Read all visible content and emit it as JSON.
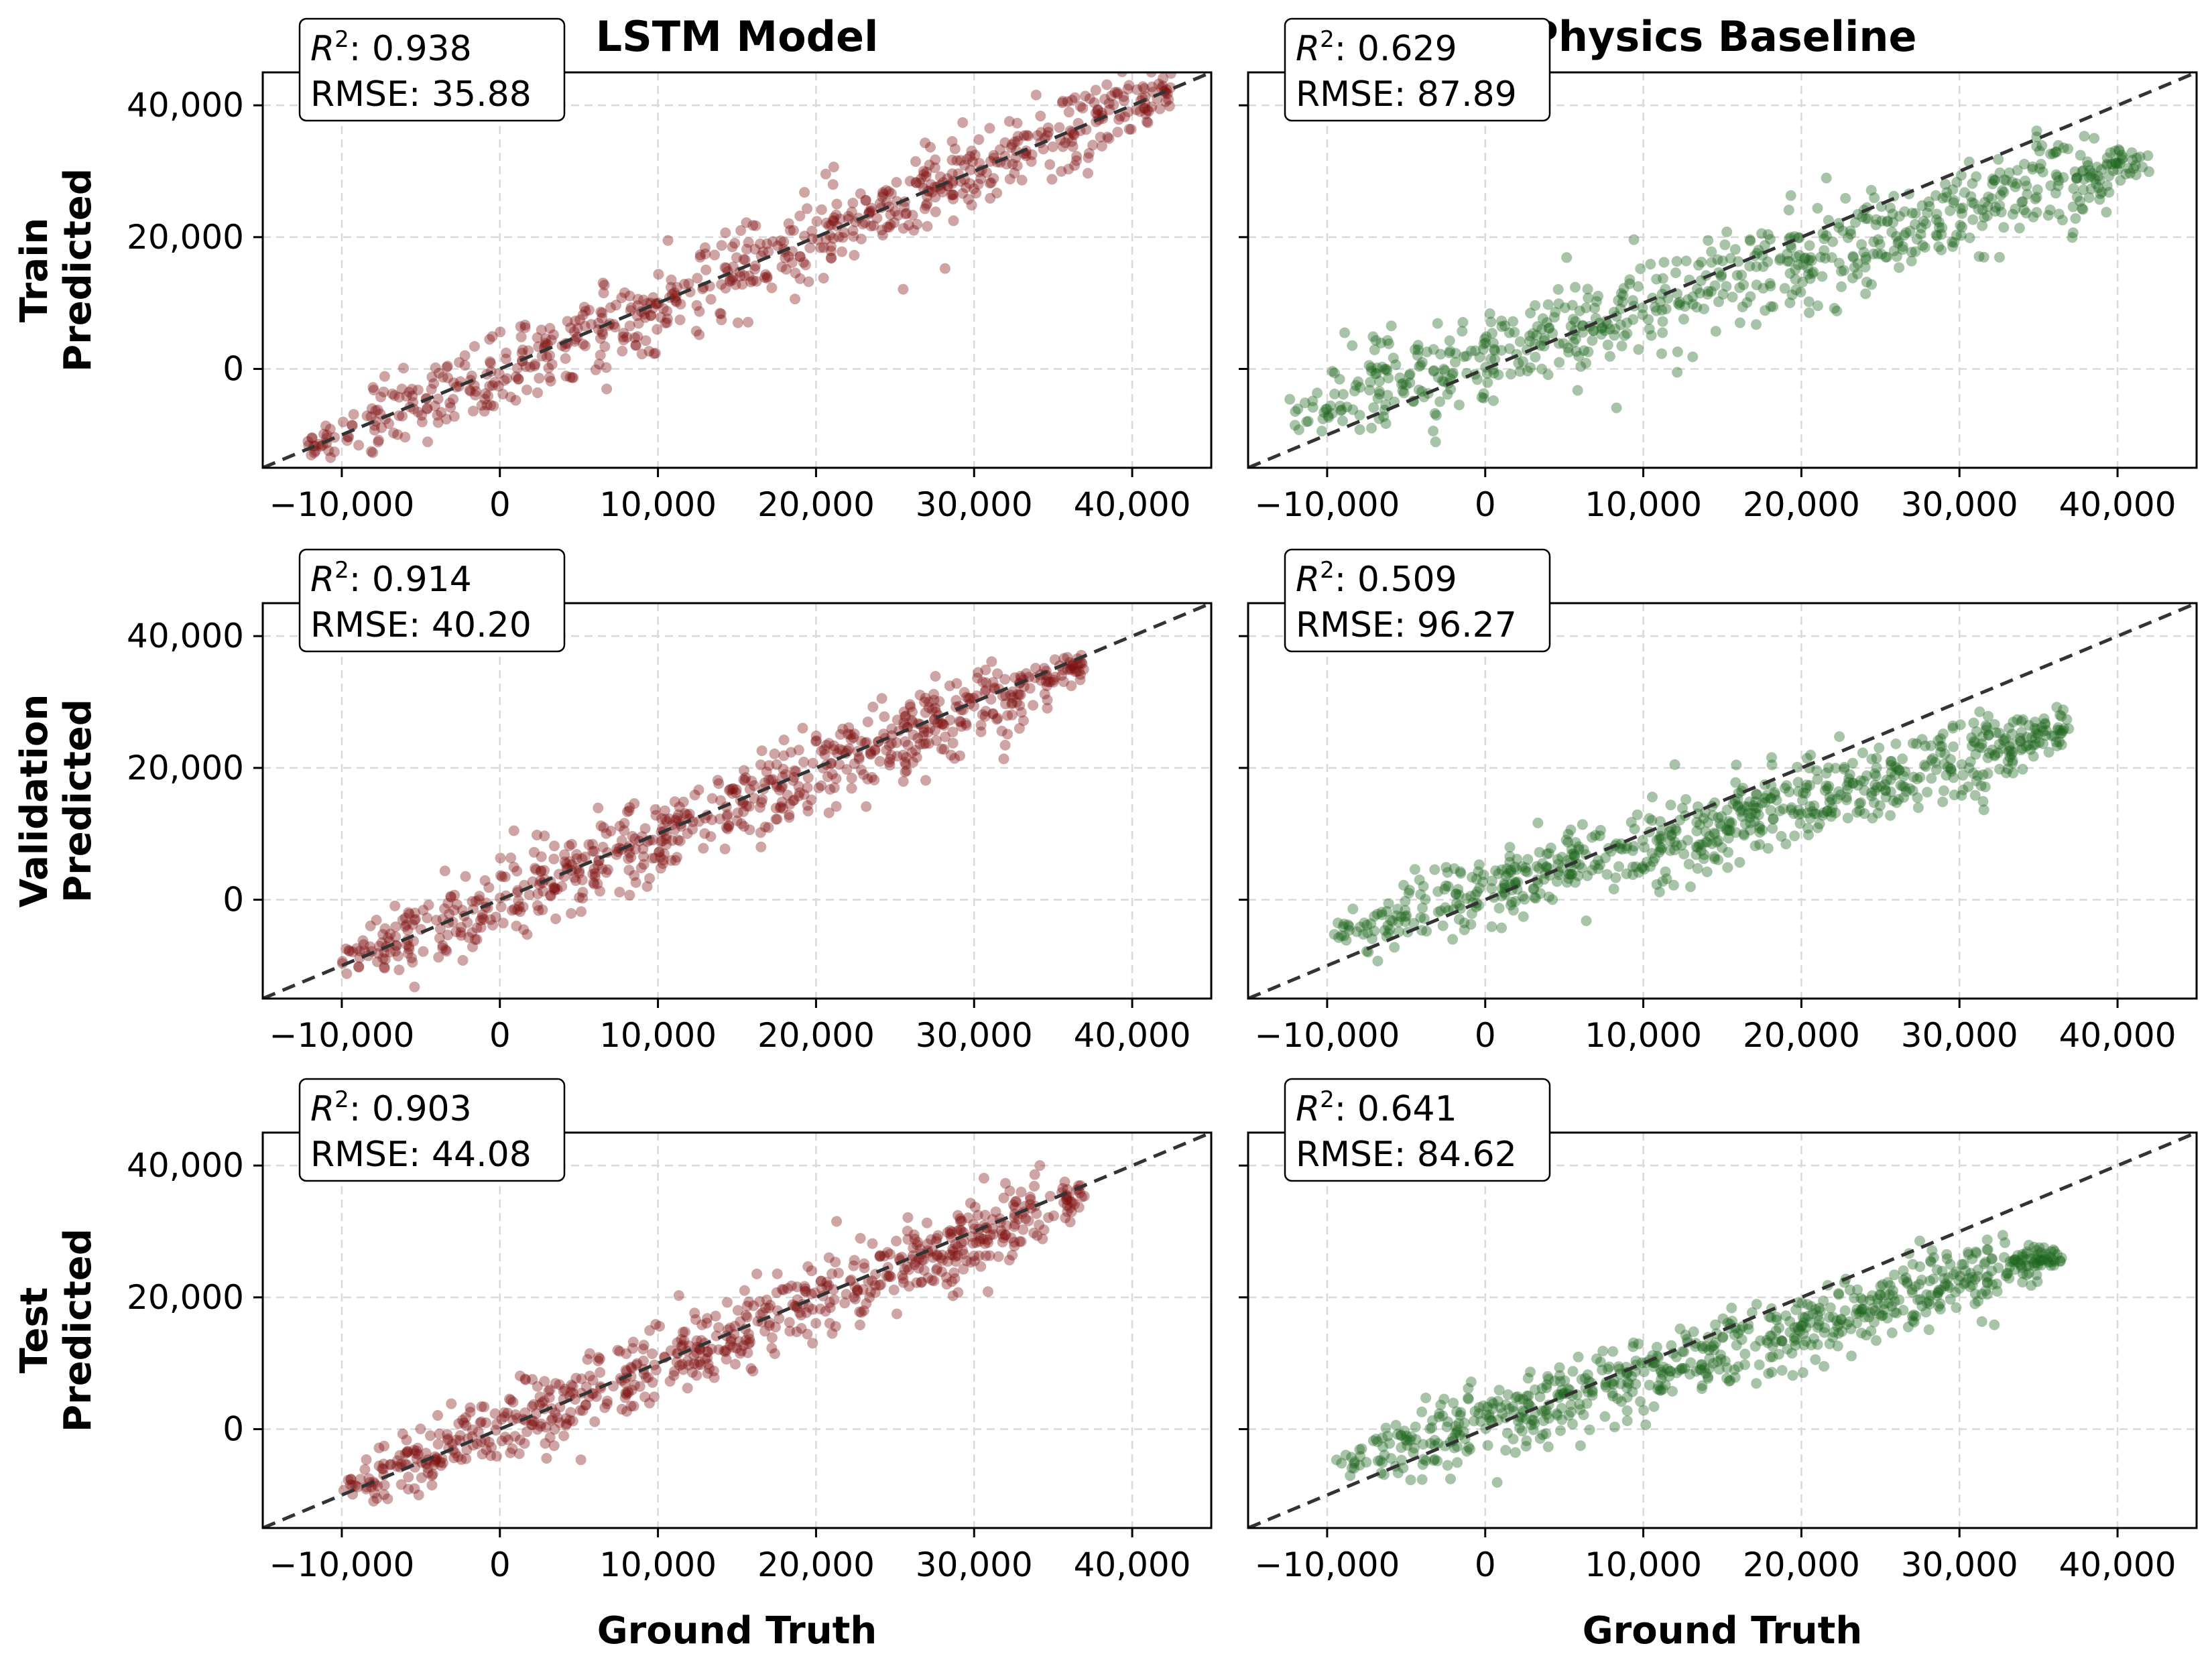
{
  "figure": {
    "columns": [
      {
        "title": "LSTM Model",
        "color": "#7f1010"
      },
      {
        "title": "Physics Baseline",
        "color": "#1a641a"
      }
    ],
    "rows": [
      {
        "label": "Train"
      },
      {
        "label": "Validation"
      },
      {
        "label": "Test"
      }
    ],
    "ylabel": "Predicted",
    "xlabel": "Ground Truth",
    "reference_line": "y = x",
    "reference_color": "#333333"
  },
  "chart_data": [
    {
      "type": "scatter",
      "row": "Train",
      "column": "LSTM Model",
      "metrics": {
        "r2_label": "0.938",
        "rmse_label": "RMSE: 35.88"
      },
      "xlim": [
        -15000,
        45000
      ],
      "ylim": [
        -15000,
        45000
      ],
      "xticks": [
        -10000,
        0,
        10000,
        20000,
        30000,
        40000
      ],
      "xtick_labels": [
        "−10,000",
        "0",
        "10,000",
        "20,000",
        "30,000",
        "40,000"
      ],
      "yticks": [
        0,
        20000,
        40000
      ],
      "ytick_labels": [
        "0",
        "20,000",
        "40,000"
      ],
      "grid": true,
      "point_cloud": {
        "x_range": [
          -12500,
          42500
        ],
        "slope": 1.0,
        "intercept": 0,
        "spread": 3200
      }
    },
    {
      "type": "scatter",
      "row": "Train",
      "column": "Physics Baseline",
      "metrics": {
        "r2_label": "0.629",
        "rmse_label": "RMSE: 87.89"
      },
      "xlim": [
        -15000,
        45000
      ],
      "ylim": [
        -15000,
        45000
      ],
      "xticks": [
        -10000,
        0,
        10000,
        20000,
        30000,
        40000
      ],
      "xtick_labels": [
        "−10,000",
        "0",
        "10,000",
        "20,000",
        "30,000",
        "40,000"
      ],
      "yticks": [
        0,
        20000,
        40000
      ],
      "ytick_labels": [
        "0",
        "20,000",
        "40,000"
      ],
      "grid": true,
      "point_cloud": {
        "x_range": [
          -12500,
          42000
        ],
        "slope": 0.72,
        "intercept": 2000,
        "spread": 3600
      }
    },
    {
      "type": "scatter",
      "row": "Validation",
      "column": "LSTM Model",
      "metrics": {
        "r2_label": "0.914",
        "rmse_label": "RMSE: 40.20"
      },
      "xlim": [
        -15000,
        45000
      ],
      "ylim": [
        -15000,
        45000
      ],
      "xticks": [
        -10000,
        0,
        10000,
        20000,
        30000,
        40000
      ],
      "xtick_labels": [
        "−10,000",
        "0",
        "10,000",
        "20,000",
        "30,000",
        "40,000"
      ],
      "yticks": [
        0,
        20000,
        40000
      ],
      "ytick_labels": [
        "0",
        "20,000",
        "40,000"
      ],
      "grid": true,
      "point_cloud": {
        "x_range": [
          -10000,
          37000
        ],
        "slope": 0.97,
        "intercept": 0,
        "spread": 3000
      }
    },
    {
      "type": "scatter",
      "row": "Validation",
      "column": "Physics Baseline",
      "metrics": {
        "r2_label": "0.509",
        "rmse_label": "RMSE: 96.27"
      },
      "xlim": [
        -15000,
        45000
      ],
      "ylim": [
        -15000,
        45000
      ],
      "xticks": [
        -10000,
        0,
        10000,
        20000,
        30000,
        40000
      ],
      "xtick_labels": [
        "−10,000",
        "0",
        "10,000",
        "20,000",
        "30,000",
        "40,000"
      ],
      "yticks": [
        0,
        20000,
        40000
      ],
      "ytick_labels": [
        "0",
        "20,000",
        "40,000"
      ],
      "grid": true,
      "point_cloud": {
        "x_range": [
          -10000,
          37000
        ],
        "slope": 0.67,
        "intercept": 1200,
        "spread": 3000
      }
    },
    {
      "type": "scatter",
      "row": "Test",
      "column": "LSTM Model",
      "metrics": {
        "r2_label": "0.903",
        "rmse_label": "RMSE: 44.08"
      },
      "xlim": [
        -15000,
        45000
      ],
      "ylim": [
        -15000,
        45000
      ],
      "xticks": [
        -10000,
        0,
        10000,
        20000,
        30000,
        40000
      ],
      "xtick_labels": [
        "−10,000",
        "0",
        "10,000",
        "20,000",
        "30,000",
        "40,000"
      ],
      "yticks": [
        0,
        20000,
        40000
      ],
      "ytick_labels": [
        "0",
        "20,000",
        "40,000"
      ],
      "grid": true,
      "point_cloud": {
        "x_range": [
          -10000,
          37000
        ],
        "slope": 0.97,
        "intercept": 0,
        "spread": 3000
      }
    },
    {
      "type": "scatter",
      "row": "Test",
      "column": "Physics Baseline",
      "metrics": {
        "r2_label": "0.641",
        "rmse_label": "RMSE: 84.62"
      },
      "xlim": [
        -15000,
        45000
      ],
      "ylim": [
        -15000,
        45000
      ],
      "xticks": [
        -10000,
        0,
        10000,
        20000,
        30000,
        40000
      ],
      "xtick_labels": [
        "−10,000",
        "0",
        "10,000",
        "20,000",
        "30,000",
        "40,000"
      ],
      "yticks": [
        0,
        20000,
        40000
      ],
      "ytick_labels": [
        "0",
        "20,000",
        "40,000"
      ],
      "grid": true,
      "point_cloud": {
        "x_range": [
          -9500,
          36500
        ],
        "slope": 0.7,
        "intercept": 1000,
        "spread": 2800
      }
    }
  ]
}
